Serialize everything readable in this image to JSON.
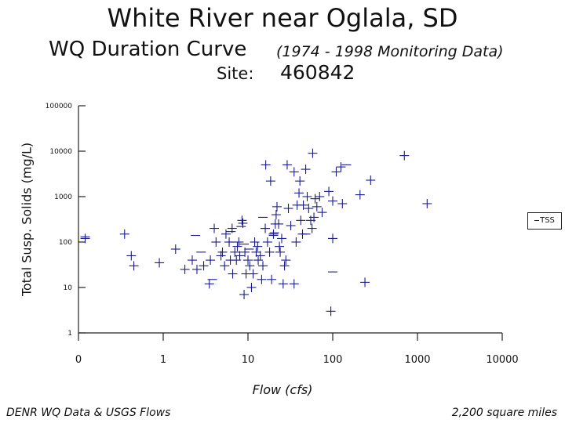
{
  "title": "White River near Oglala, SD",
  "subtitle": "WQ Duration Curve",
  "subtitle_note": "(1974 - 1998 Monitoring Data)",
  "site_label": "Site:",
  "site_value": "460842",
  "footer_left": "DENR WQ Data & USGS Flows",
  "footer_right": "2,200 square miles",
  "chart_data": {
    "type": "scatter",
    "title": "White River near Oglala, SD",
    "xlabel": "Flow (cfs)",
    "ylabel": "Total Susp. Solids (mg/L)",
    "x_scale": "log",
    "y_scale": "log",
    "xlim": [
      0,
      10000
    ],
    "ylim": [
      1,
      100000
    ],
    "x_tick_labels": [
      "0",
      "1",
      "10",
      "100",
      "1000",
      "10000"
    ],
    "y_tick_labels": [
      "1",
      "10",
      "100",
      "1000",
      "10000",
      "100000"
    ],
    "legend": "right",
    "grid": false,
    "series": [
      {
        "name": "TSS",
        "color": "#1a1a8c",
        "marker": "plus",
        "points": [
          [
            0.12,
            120
          ],
          [
            0.42,
            50
          ],
          [
            0.45,
            30
          ],
          [
            0.35,
            150
          ],
          [
            0.9,
            35
          ],
          [
            1.4,
            70
          ],
          [
            1.8,
            25
          ],
          [
            2.2,
            40
          ],
          [
            2.5,
            25
          ],
          [
            3,
            30
          ],
          [
            3.5,
            12
          ],
          [
            3.6,
            40
          ],
          [
            4,
            200
          ],
          [
            4.2,
            100
          ],
          [
            4.8,
            50
          ],
          [
            5,
            60
          ],
          [
            5.3,
            30
          ],
          [
            5.5,
            150
          ],
          [
            6,
            100
          ],
          [
            6.2,
            40
          ],
          [
            6.5,
            200
          ],
          [
            6.6,
            20
          ],
          [
            7,
            60
          ],
          [
            7.3,
            40
          ],
          [
            7.5,
            80
          ],
          [
            7.8,
            100
          ],
          [
            8,
            50
          ],
          [
            8.5,
            300
          ],
          [
            8.7,
            260
          ],
          [
            9,
            7
          ],
          [
            9.2,
            60
          ],
          [
            9.5,
            20
          ],
          [
            10,
            40
          ],
          [
            10.5,
            30
          ],
          [
            11,
            10
          ],
          [
            11.5,
            20
          ],
          [
            12,
            100
          ],
          [
            12.5,
            60
          ],
          [
            13,
            80
          ],
          [
            13.2,
            40
          ],
          [
            14,
            50
          ],
          [
            14.5,
            15
          ],
          [
            15,
            30
          ],
          [
            16,
            200
          ],
          [
            16.2,
            5000
          ],
          [
            17,
            100
          ],
          [
            18,
            60
          ],
          [
            18.5,
            2200
          ],
          [
            19,
            15
          ],
          [
            20,
            150
          ],
          [
            21,
            250
          ],
          [
            21.5,
            400
          ],
          [
            22,
            600
          ],
          [
            23,
            250
          ],
          [
            23.5,
            80
          ],
          [
            24,
            60
          ],
          [
            25,
            120
          ],
          [
            26,
            12
          ],
          [
            27,
            30
          ],
          [
            28,
            40
          ],
          [
            29,
            5000
          ],
          [
            30,
            550
          ],
          [
            32,
            230
          ],
          [
            35,
            3500
          ],
          [
            35,
            12
          ],
          [
            37,
            100
          ],
          [
            38,
            650
          ],
          [
            40,
            1200
          ],
          [
            41,
            2200
          ],
          [
            42,
            300
          ],
          [
            44,
            150
          ],
          [
            45,
            650
          ],
          [
            48,
            4000
          ],
          [
            50,
            1000
          ],
          [
            52,
            550
          ],
          [
            55,
            300
          ],
          [
            57,
            200
          ],
          [
            58,
            9000
          ],
          [
            60,
            350
          ],
          [
            62,
            900
          ],
          [
            65,
            600
          ],
          [
            70,
            1000
          ],
          [
            75,
            450
          ],
          [
            90,
            1300
          ],
          [
            95,
            3
          ],
          [
            100,
            800
          ],
          [
            100,
            120
          ],
          [
            110,
            3500
          ],
          [
            125,
            4500
          ],
          [
            130,
            700
          ],
          [
            210,
            1100
          ],
          [
            240,
            13
          ],
          [
            280,
            2300
          ],
          [
            700,
            8000
          ],
          [
            1300,
            700
          ]
        ]
      }
    ],
    "dash_points": [
      [
        0.12,
        130
      ],
      [
        2.4,
        140
      ],
      [
        3.8,
        15
      ],
      [
        2.8,
        60
      ],
      [
        6.5,
        100
      ],
      [
        6.3,
        170
      ],
      [
        8.3,
        220
      ],
      [
        9,
        90
      ],
      [
        10.3,
        70
      ],
      [
        15,
        350
      ],
      [
        16,
        200
      ],
      [
        20,
        140
      ],
      [
        20.5,
        160
      ],
      [
        48,
        150
      ],
      [
        100,
        22
      ],
      [
        145,
        5000
      ]
    ]
  }
}
